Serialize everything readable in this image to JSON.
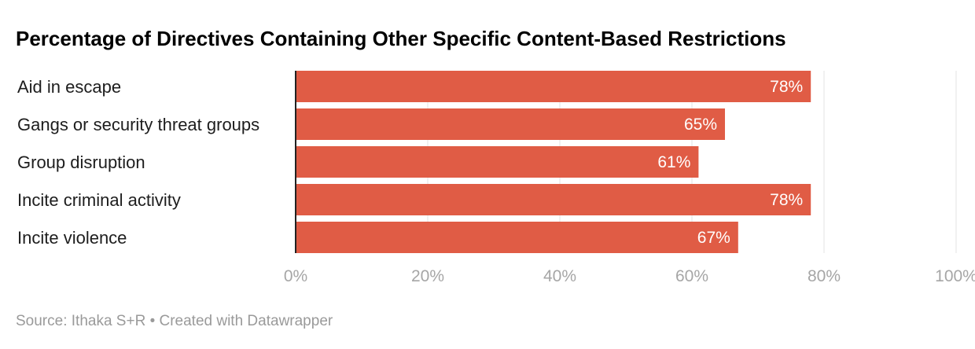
{
  "chart_data": {
    "type": "bar",
    "orientation": "horizontal",
    "title": "Percentage of Directives Containing Other Specific Content-Based Restrictions",
    "categories": [
      "Aid in escape",
      "Gangs or security threat groups",
      "Group disruption",
      "Incite criminal activity",
      "Incite violence"
    ],
    "values": [
      78,
      65,
      61,
      78,
      67
    ],
    "value_labels": [
      "78%",
      "65%",
      "61%",
      "78%",
      "67%"
    ],
    "xlim": [
      0,
      100
    ],
    "ticks": [
      0,
      20,
      40,
      60,
      80,
      100
    ],
    "tick_labels": [
      "0%",
      "20%",
      "40%",
      "60%",
      "80%",
      "100%"
    ],
    "grid": true,
    "bar_color": "#e05c45"
  },
  "footer": {
    "source": "Source: Ithaka S+R • Created with Datawrapper"
  }
}
